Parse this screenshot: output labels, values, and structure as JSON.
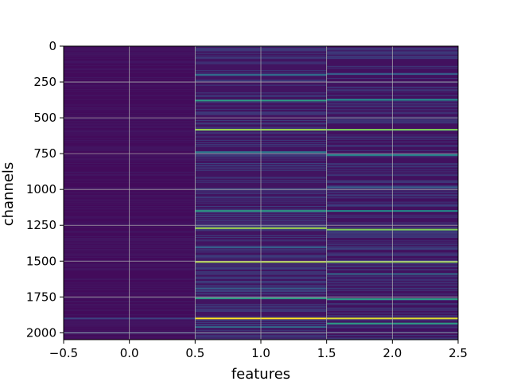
{
  "chart_data": {
    "type": "heatmap",
    "title": "",
    "xlabel": "features",
    "ylabel": "channels",
    "xlim": [
      -0.5,
      2.5
    ],
    "ylim": [
      2048,
      0
    ],
    "y_inverted": true,
    "grid": true,
    "colormap": "viridis",
    "colorbar": false,
    "columns": [
      0,
      1,
      2
    ],
    "rows": 2048,
    "x_ticks": [
      -0.5,
      0.0,
      0.5,
      1.0,
      1.5,
      2.0,
      2.5
    ],
    "x_tick_labels": [
      "−0.5",
      "0.0",
      "0.5",
      "1.0",
      "1.5",
      "2.0",
      "2.5"
    ],
    "y_ticks": [
      0,
      250,
      500,
      750,
      1000,
      1250,
      1500,
      1750,
      2000
    ],
    "y_tick_labels": [
      "0",
      "250",
      "500",
      "750",
      "1000",
      "1250",
      "1500",
      "1750",
      "2000"
    ],
    "value_range": [
      0,
      1
    ],
    "background_levels": [
      0.03,
      0.06,
      0.05
    ],
    "bright_bands": [
      {
        "channel": 1900,
        "column": 0,
        "value": 0.2
      },
      {
        "channel": 2000,
        "column": 0,
        "value": 0.18
      },
      {
        "channel": 583,
        "column": 1,
        "value": 0.85
      },
      {
        "channel": 583,
        "column": 2,
        "value": 0.8
      },
      {
        "channel": 1270,
        "column": 1,
        "value": 0.85
      },
      {
        "channel": 1280,
        "column": 2,
        "value": 0.8
      },
      {
        "channel": 1505,
        "column": 1,
        "value": 0.9
      },
      {
        "channel": 1505,
        "column": 2,
        "value": 0.85
      },
      {
        "channel": 1900,
        "column": 1,
        "value": 1.0
      },
      {
        "channel": 1900,
        "column": 2,
        "value": 0.95
      },
      {
        "channel": 380,
        "column": 1,
        "value": 0.55
      },
      {
        "channel": 375,
        "column": 2,
        "value": 0.5
      },
      {
        "channel": 1150,
        "column": 1,
        "value": 0.55
      },
      {
        "channel": 1150,
        "column": 2,
        "value": 0.5
      },
      {
        "channel": 1760,
        "column": 1,
        "value": 0.55
      },
      {
        "channel": 1765,
        "column": 2,
        "value": 0.55
      },
      {
        "channel": 1935,
        "column": 2,
        "value": 0.55
      },
      {
        "channel": 200,
        "column": 1,
        "value": 0.35
      },
      {
        "channel": 195,
        "column": 2,
        "value": 0.3
      },
      {
        "channel": 740,
        "column": 1,
        "value": 0.4
      },
      {
        "channel": 760,
        "column": 2,
        "value": 0.45
      },
      {
        "channel": 985,
        "column": 2,
        "value": 0.3
      },
      {
        "channel": 1405,
        "column": 1,
        "value": 0.3
      },
      {
        "channel": 1590,
        "column": 2,
        "value": 0.35
      },
      {
        "channel": 1690,
        "column": 1,
        "value": 0.3
      },
      {
        "channel": 1960,
        "column": 1,
        "value": 0.35
      }
    ]
  }
}
